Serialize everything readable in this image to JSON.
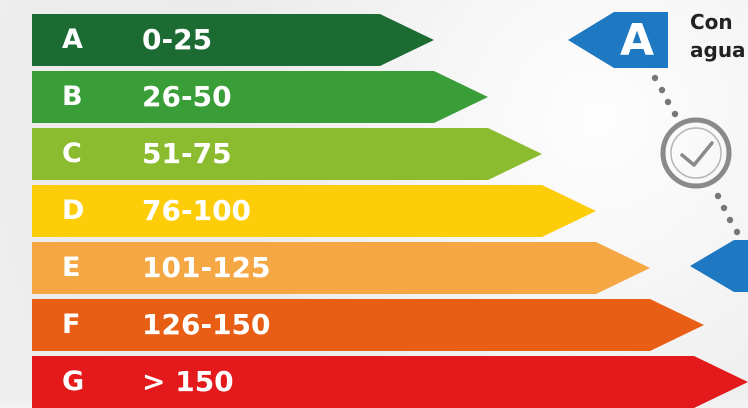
{
  "scale": [
    {
      "letter": "A",
      "range": "0-25",
      "color": "#1c6b32"
    },
    {
      "letter": "B",
      "range": "26-50",
      "color": "#3a9e38"
    },
    {
      "letter": "C",
      "range": "51-75",
      "color": "#8bbb2f"
    },
    {
      "letter": "D",
      "range": "76-100",
      "color": "#fdcd0a"
    },
    {
      "letter": "E",
      "range": "101-125",
      "color": "#f5a744"
    },
    {
      "letter": "F",
      "range": "126-150",
      "color": "#e85e15"
    },
    {
      "letter": "G",
      "range": "> 150",
      "color": "#e3191b"
    }
  ],
  "rating": {
    "letter": "A",
    "color": "#1e78c2"
  },
  "description": {
    "line1": "Con",
    "line2": "agua"
  },
  "icons": {
    "clock": "clock-icon"
  }
}
